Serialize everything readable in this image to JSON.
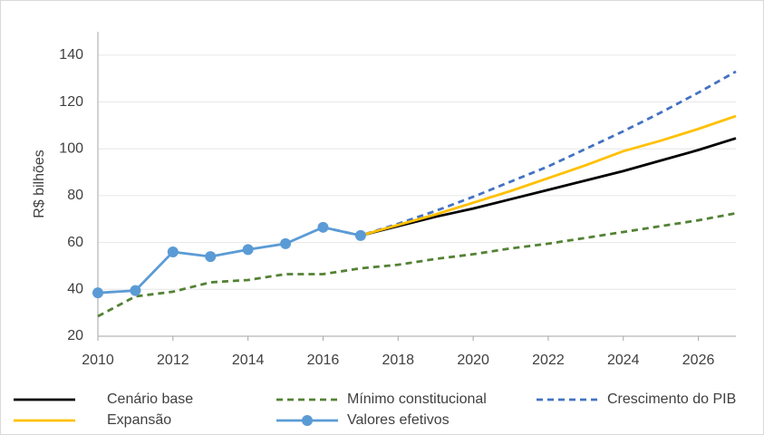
{
  "chart_data": {
    "type": "line",
    "y_label": "R$ bilhões",
    "x": [
      2010,
      2011,
      2012,
      2013,
      2014,
      2015,
      2016,
      2017,
      2018,
      2019,
      2020,
      2021,
      2022,
      2023,
      2024,
      2025,
      2026,
      2027
    ],
    "xlim": [
      2010,
      2027
    ],
    "xticks": [
      2010,
      2012,
      2014,
      2016,
      2018,
      2020,
      2022,
      2024,
      2026
    ],
    "ylim": [
      20,
      150
    ],
    "yticks": [
      20,
      40,
      60,
      80,
      100,
      120,
      140
    ],
    "grid": true,
    "series": [
      {
        "name": "Cenário base",
        "color": "#000000",
        "dash": false,
        "markers": false,
        "values": [
          null,
          null,
          null,
          null,
          null,
          null,
          null,
          63,
          67,
          71,
          74.5,
          78.5,
          82.5,
          86.5,
          90.5,
          95,
          99.5,
          104.5
        ]
      },
      {
        "name": "Mínimo constitucional",
        "color": "#548235",
        "dash": true,
        "markers": false,
        "values": [
          28.5,
          37,
          39,
          43,
          44,
          46.5,
          46.5,
          49,
          50.5,
          53,
          55,
          57.5,
          59.5,
          62,
          64.5,
          67,
          69.5,
          72.5
        ]
      },
      {
        "name": "Crescimento do PIB",
        "color": "#4472c4",
        "dash": true,
        "markers": false,
        "values": [
          null,
          null,
          null,
          null,
          null,
          null,
          66.5,
          63,
          68,
          73.5,
          79.5,
          86,
          92.5,
          100,
          107.5,
          115.5,
          124,
          133
        ]
      },
      {
        "name": "Expansão",
        "color": "#ffc000",
        "dash": false,
        "markers": false,
        "values": [
          null,
          null,
          null,
          null,
          null,
          null,
          null,
          63,
          67.5,
          72,
          77,
          82,
          87.5,
          93,
          99,
          103.5,
          108.5,
          114
        ]
      },
      {
        "name": "Valores efetivos",
        "color": "#5b9bd5",
        "dash": false,
        "markers": true,
        "values": [
          38.5,
          39.5,
          56,
          54,
          57,
          59.5,
          66.5,
          63,
          null,
          null,
          null,
          null,
          null,
          null,
          null,
          null,
          null,
          null
        ]
      }
    ]
  }
}
